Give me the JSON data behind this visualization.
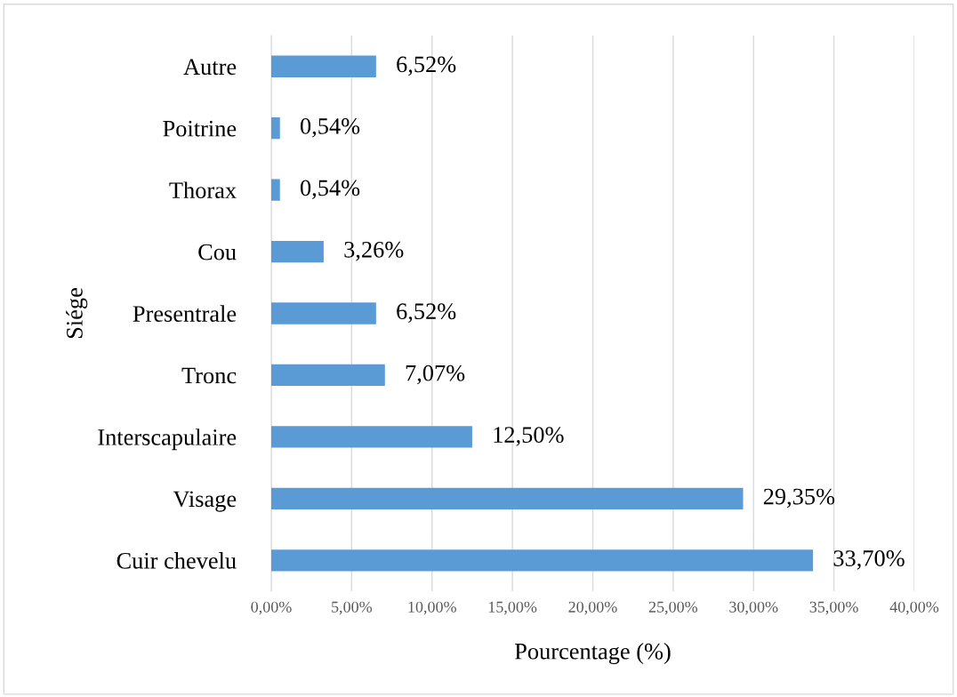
{
  "chart_data": {
    "type": "bar",
    "orientation": "horizontal",
    "xlabel": "Pourcentage (%)",
    "ylabel": "Siége",
    "categories": [
      "Autre",
      "Poitrine",
      "Thorax",
      "Cou",
      "Presentrale",
      "Tronc",
      "Interscapulaire",
      "Visage",
      "Cuir chevelu"
    ],
    "values": [
      6.52,
      0.54,
      0.54,
      3.26,
      6.52,
      7.07,
      12.5,
      29.35,
      33.7
    ],
    "value_labels": [
      "6,52%",
      "0,54%",
      "0,54%",
      "3,26%",
      "6,52%",
      "7,07%",
      "12,50%",
      "29,35%",
      "33,70%"
    ],
    "color": "#5b9bd5",
    "xlim": [
      0,
      40
    ],
    "xticks": [
      {
        "value": 0,
        "label": "0,00%"
      },
      {
        "value": 5,
        "label": "5,00%"
      },
      {
        "value": 10,
        "label": "10,00%"
      },
      {
        "value": 15,
        "label": "15,00%"
      },
      {
        "value": 20,
        "label": "20,00%"
      },
      {
        "value": 25,
        "label": "25,00%"
      },
      {
        "value": 30,
        "label": "30,00%"
      },
      {
        "value": 35,
        "label": "35,00%"
      },
      {
        "value": 40,
        "label": "40,00%"
      }
    ],
    "grid": "x",
    "legend": false
  }
}
